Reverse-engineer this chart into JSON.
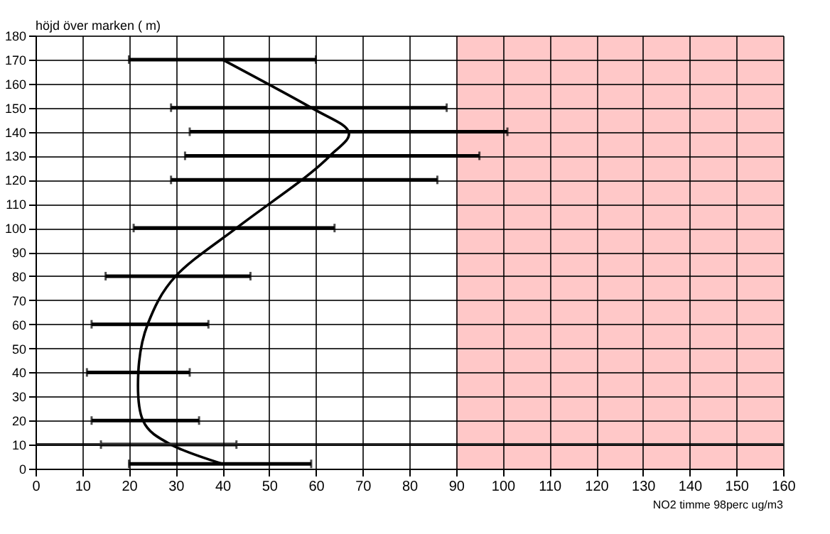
{
  "chart_data": {
    "type": "line",
    "xlabel": "NO2 timme 98perc ug/m3",
    "ylabel": "höjd över marken ( m)",
    "series": [
      {
        "color": "#000000",
        "x": [
          40,
          29,
          23,
          22,
          24,
          30,
          43,
          57,
          63,
          67,
          59,
          40
        ],
        "values": [
          2,
          10,
          20,
          40,
          60,
          80,
          100,
          120,
          130,
          140,
          150,
          170
        ],
        "xerrors": [
          [
            20,
            59
          ],
          [
            14,
            43
          ],
          [
            12,
            35
          ],
          [
            11,
            33
          ],
          [
            12,
            37
          ],
          [
            15,
            46
          ],
          [
            21,
            64
          ],
          [
            29,
            86
          ],
          [
            32,
            95
          ],
          [
            33,
            101
          ],
          [
            29,
            88
          ],
          [
            20,
            60
          ]
        ]
      }
    ],
    "xlim": [
      0,
      160
    ],
    "xticks": [
      0,
      10,
      20,
      30,
      40,
      50,
      60,
      70,
      80,
      90,
      100,
      110,
      120,
      130,
      140,
      150,
      160
    ],
    "ylim": [
      0,
      180
    ],
    "yticks": [
      0,
      10,
      20,
      30,
      40,
      50,
      60,
      70,
      80,
      90,
      100,
      110,
      120,
      130,
      140,
      150,
      160,
      170,
      180
    ],
    "grid": true,
    "marker": "none",
    "line_style": "solid",
    "ref_lines": [
      {
        "axis": "y",
        "value": 10,
        "color": "#333333"
      }
    ],
    "bands": [
      {
        "axis": "x",
        "from": 90,
        "to": 160,
        "color": "#ffc8c8"
      }
    ]
  }
}
